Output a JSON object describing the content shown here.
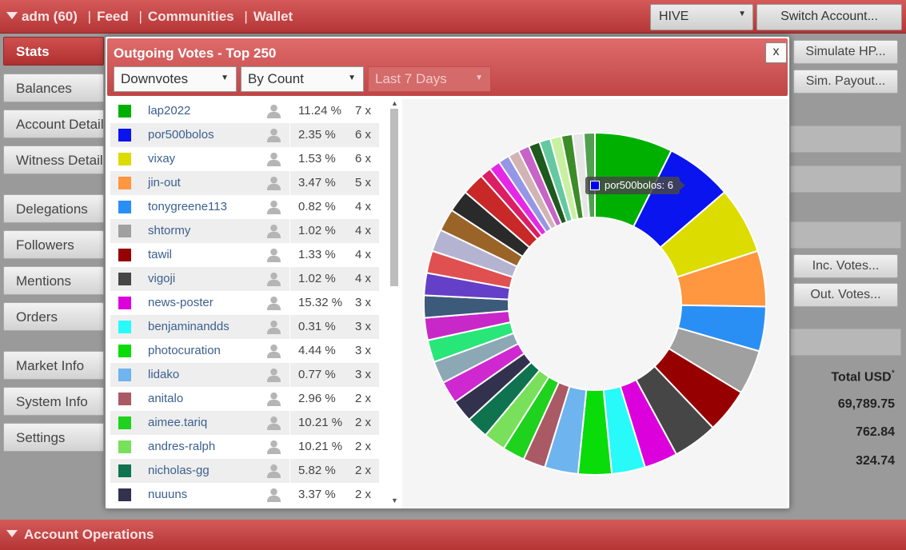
{
  "topbar": {
    "account": "adm (60)",
    "links": [
      "Feed",
      "Communities",
      "Wallet"
    ],
    "separator": "|",
    "currency": "HIVE",
    "switch_account": "Switch Account..."
  },
  "left_menu": [
    "Stats",
    "Balances",
    "Account Details",
    "Witness Details",
    "Delegations",
    "Followers",
    "Mentions",
    "Orders",
    "Market Info",
    "System Info",
    "Settings"
  ],
  "right_panel": {
    "simulate_hp": "Simulate HP...",
    "sim_payout": "Sim. Payout...",
    "inc_votes": "Inc. Votes...",
    "out_votes": "Out. Votes...",
    "total_usd_label": "Total USD",
    "total_usd_mark": "*",
    "values": [
      "69,789.75",
      "762.84",
      "324.74"
    ]
  },
  "bottom_bar": "Account Operations",
  "modal": {
    "title": "Outgoing Votes - Top 250",
    "close": "x",
    "vote_type": "Downvotes",
    "sort": "By Count",
    "range": "Last 7 Days",
    "tooltip": "por500bolos: 6",
    "tooltip_color": "#0000ee"
  },
  "votes": [
    {
      "name": "lap2022",
      "pct": "11.24 %",
      "count": "7 x",
      "color": "#00b000"
    },
    {
      "name": "por500bolos",
      "pct": "2.35 %",
      "count": "6 x",
      "color": "#0a14ee"
    },
    {
      "name": "vixay",
      "pct": "1.53 %",
      "count": "6 x",
      "color": "#dcdc00"
    },
    {
      "name": "jin-out",
      "pct": "3.47 %",
      "count": "5 x",
      "color": "#ff9640"
    },
    {
      "name": "tonygreene113",
      "pct": "0.82 %",
      "count": "4 x",
      "color": "#2a8ff5"
    },
    {
      "name": "shtormy",
      "pct": "1.02 %",
      "count": "4 x",
      "color": "#a0a0a0"
    },
    {
      "name": "tawil",
      "pct": "1.33 %",
      "count": "4 x",
      "color": "#960000"
    },
    {
      "name": "vigoji",
      "pct": "1.02 %",
      "count": "4 x",
      "color": "#464646"
    },
    {
      "name": "news-poster",
      "pct": "15.32 %",
      "count": "3 x",
      "color": "#dc00dc"
    },
    {
      "name": "benjaminandds",
      "pct": "0.31 %",
      "count": "3 x",
      "color": "#28fafa"
    },
    {
      "name": "photocuration",
      "pct": "4.44 %",
      "count": "3 x",
      "color": "#0adc0a"
    },
    {
      "name": "lidako",
      "pct": "0.77 %",
      "count": "3 x",
      "color": "#6eb4ee"
    },
    {
      "name": "anitalo",
      "pct": "2.96 %",
      "count": "2 x",
      "color": "#aa5a64"
    },
    {
      "name": "aimee.tariq",
      "pct": "10.21 %",
      "count": "2 x",
      "color": "#1ed21e"
    },
    {
      "name": "andres-ralph",
      "pct": "10.21 %",
      "count": "2 x",
      "color": "#78e05a"
    },
    {
      "name": "nicholas-gg",
      "pct": "5.82 %",
      "count": "2 x",
      "color": "#0f7350"
    },
    {
      "name": "nuuuns",
      "pct": "3.37 %",
      "count": "2 x",
      "color": "#32324e"
    }
  ],
  "chart_data": {
    "type": "pie",
    "style": "donut",
    "categories": [
      "lap2022",
      "por500bolos",
      "vixay",
      "jin-out",
      "tonygreene113",
      "shtormy",
      "tawil",
      "vigoji",
      "news-poster",
      "benjaminandds",
      "photocuration",
      "lidako",
      "anitalo",
      "aimee.tariq",
      "andres-ralph",
      "nicholas-gg",
      "nuuuns"
    ],
    "values": [
      7,
      6,
      6,
      5,
      4,
      4,
      4,
      4,
      3,
      3,
      3,
      3,
      2,
      2,
      2,
      2,
      2
    ],
    "colors": [
      "#00b000",
      "#0a14ee",
      "#dcdc00",
      "#ff9640",
      "#2a8ff5",
      "#a0a0a0",
      "#960000",
      "#464646",
      "#dc00dc",
      "#28fafa",
      "#0adc0a",
      "#6eb4ee",
      "#aa5a64",
      "#1ed21e",
      "#78e05a",
      "#0f7350",
      "#32324e"
    ],
    "extra_values": [
      2,
      2,
      2,
      2,
      2,
      2,
      2,
      2,
      2,
      2,
      2,
      1,
      1,
      1,
      1,
      1,
      1,
      1,
      1,
      1,
      1,
      1
    ],
    "extra_colors": [
      "#d028d0",
      "#8ca8b4",
      "#28e678",
      "#c828c8",
      "#3c5a7a",
      "#6440c8",
      "#e05050",
      "#b4b4d2",
      "#9a6428",
      "#2a2a2a",
      "#c82828",
      "#dc1e64",
      "#e628e6",
      "#9696e6",
      "#d2b4b4",
      "#c864c8",
      "#1e5a1e",
      "#64c8a0",
      "#c8f0a0",
      "#3c8c28",
      "#e6e6e6",
      "#50a050"
    ]
  }
}
